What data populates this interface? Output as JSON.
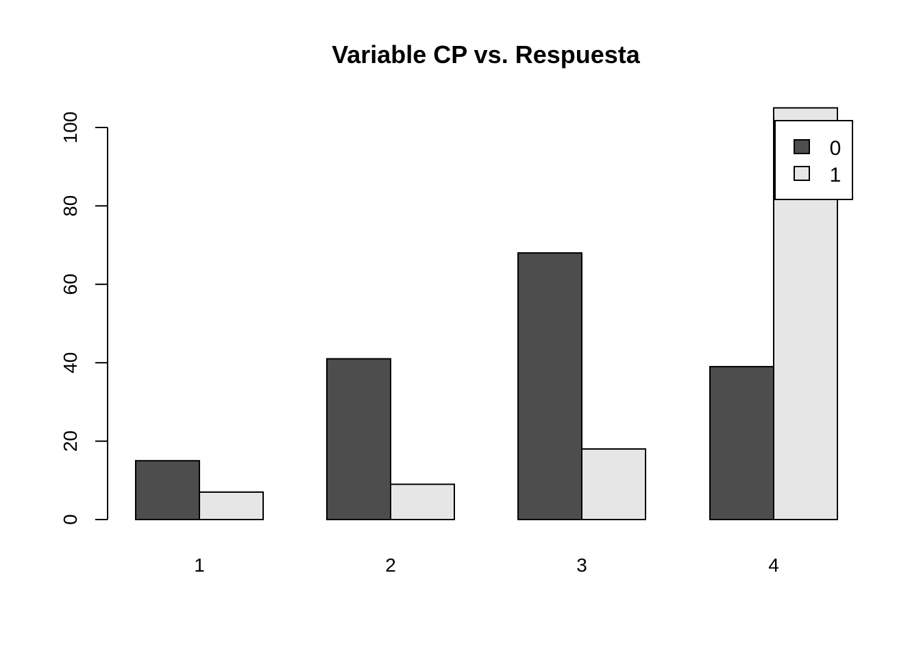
{
  "chart_data": {
    "type": "bar",
    "title": "Variable CP vs. Respuesta",
    "xlabel": "",
    "ylabel": "",
    "categories": [
      "1",
      "2",
      "3",
      "4"
    ],
    "series": [
      {
        "name": "0",
        "values": [
          15,
          41,
          68,
          39
        ],
        "color": "#4d4d4d"
      },
      {
        "name": "1",
        "values": [
          7,
          9,
          18,
          105
        ],
        "color": "#e6e6e6"
      }
    ],
    "ylim": [
      0,
      100
    ],
    "yticks": [
      "0",
      "20",
      "40",
      "60",
      "80",
      "100"
    ],
    "grid": false,
    "legend_position": "top-right"
  }
}
